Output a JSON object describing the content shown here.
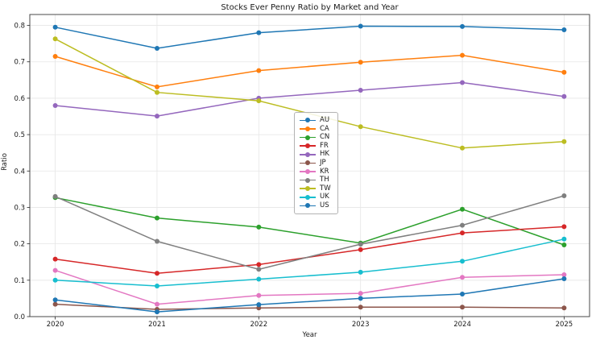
{
  "chart_data": {
    "type": "line",
    "title": "Stocks Ever Penny Ratio by Market and Year",
    "xlabel": "Year",
    "ylabel": "Ratio",
    "x": [
      2020,
      2021,
      2022,
      2023,
      2024,
      2025
    ],
    "xtick_labels": [
      "2020",
      "2021",
      "2022",
      "2023",
      "2024",
      "2025"
    ],
    "yticks": [
      0.0,
      0.1,
      0.2,
      0.3,
      0.4,
      0.5,
      0.6,
      0.7,
      0.8
    ],
    "ytick_labels": [
      "0.0",
      "0.1",
      "0.2",
      "0.3",
      "0.4",
      "0.5",
      "0.6",
      "0.7",
      "0.8"
    ],
    "ylim": [
      0,
      0.83
    ],
    "grid": true,
    "legend_position": "center",
    "marker": "circle",
    "series": [
      {
        "name": "AU",
        "color": "#1f77b4",
        "values": [
          0.795,
          0.737,
          0.78,
          0.798,
          0.797,
          0.788
        ]
      },
      {
        "name": "CA",
        "color": "#ff7f0e",
        "values": [
          0.715,
          0.631,
          0.676,
          0.699,
          0.718,
          0.671
        ]
      },
      {
        "name": "CN",
        "color": "#2ca02c",
        "values": [
          0.327,
          0.271,
          0.246,
          0.202,
          0.295,
          0.197
        ]
      },
      {
        "name": "FR",
        "color": "#d62728",
        "values": [
          0.158,
          0.119,
          0.143,
          0.184,
          0.23,
          0.247
        ]
      },
      {
        "name": "HK",
        "color": "#9467bd",
        "values": [
          0.58,
          0.551,
          0.6,
          0.622,
          0.643,
          0.605
        ]
      },
      {
        "name": "JP",
        "color": "#8c564b",
        "values": [
          0.034,
          0.02,
          0.024,
          0.026,
          0.026,
          0.024
        ]
      },
      {
        "name": "KR",
        "color": "#e377c2",
        "values": [
          0.127,
          0.034,
          0.058,
          0.064,
          0.108,
          0.115
        ]
      },
      {
        "name": "TH",
        "color": "#7f7f7f",
        "values": [
          0.33,
          0.207,
          0.13,
          0.199,
          0.251,
          0.332
        ]
      },
      {
        "name": "TW",
        "color": "#bcbd22",
        "values": [
          0.763,
          0.616,
          0.593,
          0.522,
          0.463,
          0.481
        ]
      },
      {
        "name": "UK",
        "color": "#17becf",
        "values": [
          0.1,
          0.084,
          0.103,
          0.122,
          0.152,
          0.213
        ]
      },
      {
        "name": "US",
        "color": "#1f77b4",
        "values": [
          0.046,
          0.013,
          0.033,
          0.05,
          0.062,
          0.104
        ]
      }
    ],
    "style": {
      "grid_color": "#e6e6e6",
      "spine_color": "#4a4a4a",
      "tick_color": "#262626",
      "text_color": "#1a1a1a",
      "plot_bg": "#ffffff"
    }
  }
}
